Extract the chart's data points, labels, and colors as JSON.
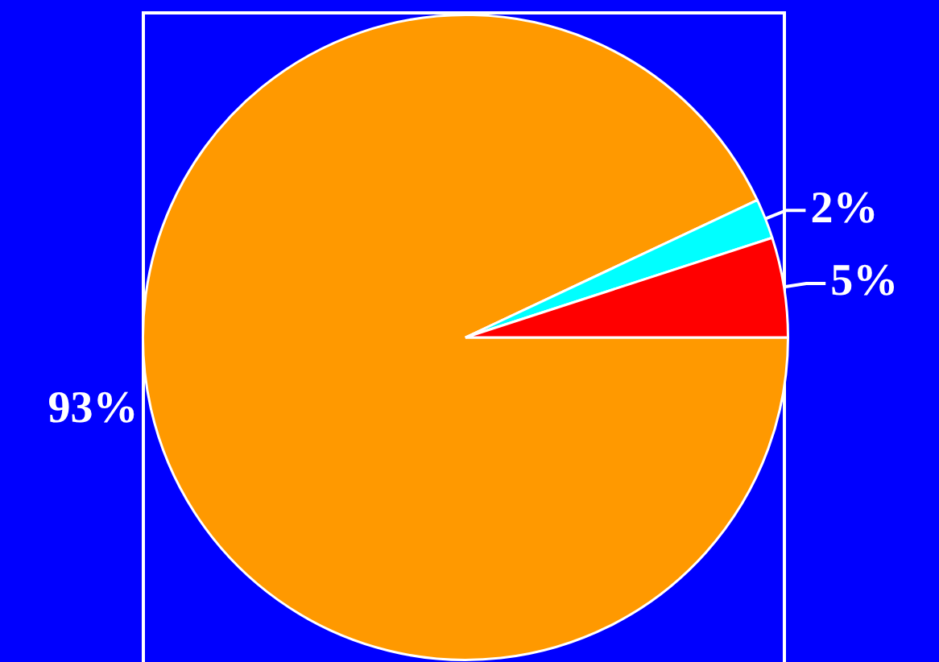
{
  "chart_data": {
    "type": "pie",
    "categories": [
      null,
      null,
      null
    ],
    "values": [
      93,
      2,
      5
    ],
    "colors": [
      "#ff9900",
      "#00ffff",
      "#ff0000"
    ],
    "value_labels": [
      "93%",
      "2%",
      "5%"
    ],
    "legend": false
  }
}
